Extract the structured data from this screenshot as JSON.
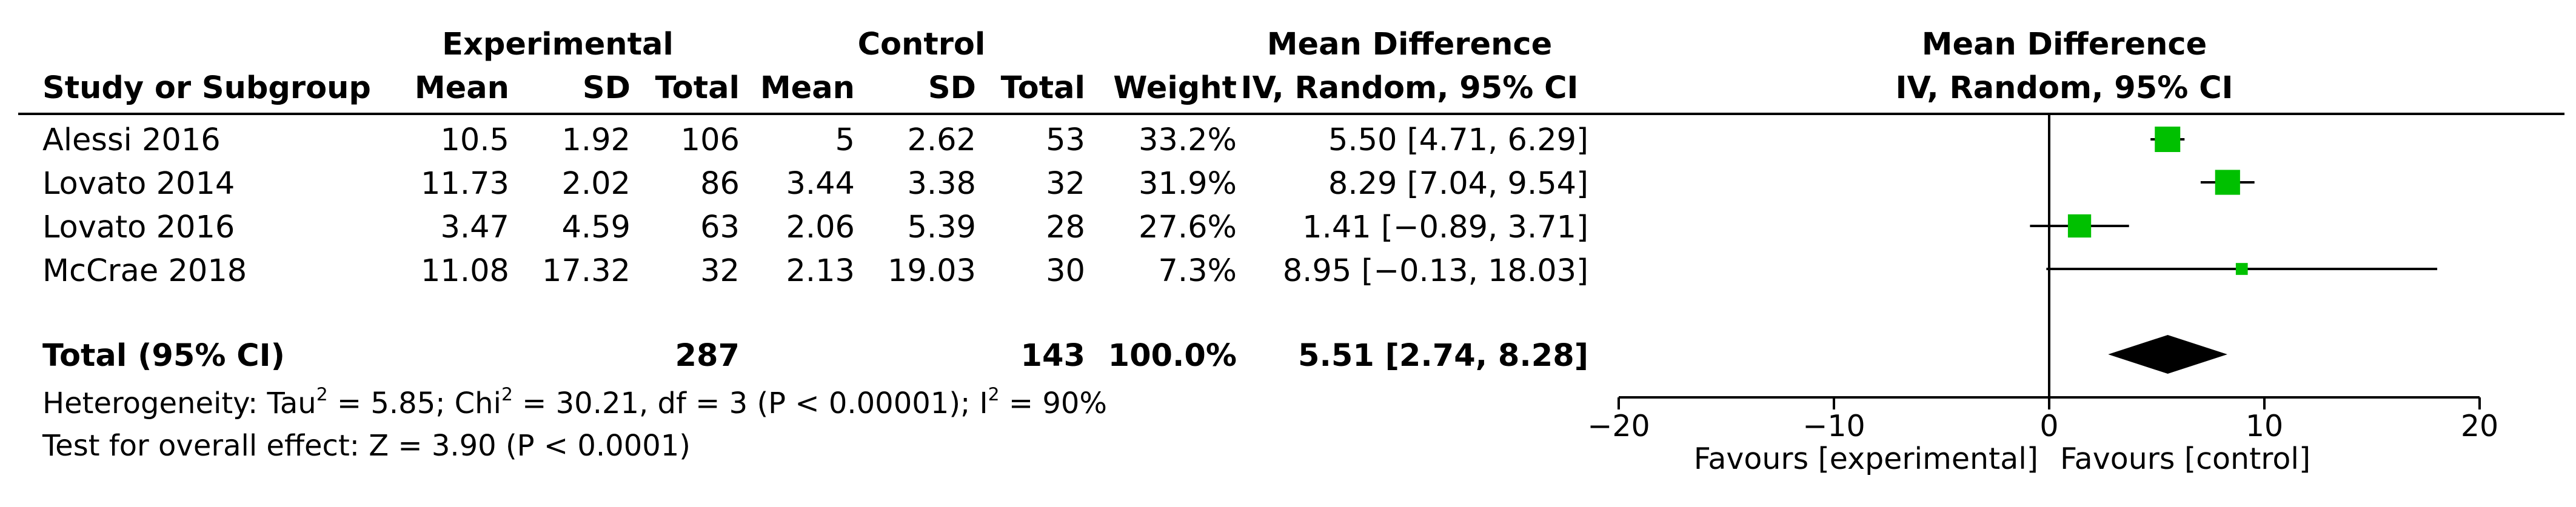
{
  "header": {
    "group_experimental": "Experimental",
    "group_control": "Control",
    "md_title": "Mean Difference",
    "study_col": "Study or Subgroup",
    "mean": "Mean",
    "sd": "SD",
    "total": "Total",
    "weight": "Weight",
    "md_method": "IV, Random, 95% CI",
    "plot_title": "Mean Difference",
    "plot_method": "IV, Random, 95% CI"
  },
  "studies": [
    {
      "name": "Alessi 2016",
      "exp_mean": "10.5",
      "exp_sd": "1.92",
      "exp_total": "106",
      "ctl_mean": "5",
      "ctl_sd": "2.62",
      "ctl_total": "53",
      "weight": "33.2%",
      "ci_text": "5.50 [4.71, 6.29]"
    },
    {
      "name": "Lovato 2014",
      "exp_mean": "11.73",
      "exp_sd": "2.02",
      "exp_total": "86",
      "ctl_mean": "3.44",
      "ctl_sd": "3.38",
      "ctl_total": "32",
      "weight": "31.9%",
      "ci_text": "8.29 [7.04, 9.54]"
    },
    {
      "name": "Lovato 2016",
      "exp_mean": "3.47",
      "exp_sd": "4.59",
      "exp_total": "63",
      "ctl_mean": "2.06",
      "ctl_sd": "5.39",
      "ctl_total": "28",
      "weight": "27.6%",
      "ci_text": "1.41 [−0.89, 3.71]"
    },
    {
      "name": "McCrae 2018",
      "exp_mean": "11.08",
      "exp_sd": "17.32",
      "exp_total": "32",
      "ctl_mean": "2.13",
      "ctl_sd": "19.03",
      "ctl_total": "30",
      "weight": "7.3%",
      "ci_text": "8.95 [−0.13, 18.03]"
    }
  ],
  "total_row": {
    "label": "Total (95% CI)",
    "exp_total": "287",
    "ctl_total": "143",
    "weight": "100.0%",
    "ci_text": "5.51 [2.74, 8.28]"
  },
  "footer": {
    "het_pre": "Heterogeneity: Tau",
    "het_mid1": " = 5.85; Chi",
    "het_mid2": " = 30.21, df = 3 (P < 0.00001); I",
    "het_post": " = 90%",
    "sup": "2",
    "overall": "Test for overall effect: Z = 3.90 (P < 0.0001)"
  },
  "axis": {
    "favours_left": "Favours [experimental]",
    "favours_right": "Favours [control]"
  },
  "colors": {
    "study_marker": "#00c000",
    "line": "#000000"
  },
  "chart_data": {
    "type": "forest",
    "title": "Mean Difference",
    "subtitle": "IV, Random, 95% CI",
    "xlim": [
      -20,
      20
    ],
    "xticks": [
      -20,
      -10,
      0,
      10,
      20
    ],
    "xtick_labels": [
      "−20",
      "−10",
      "0",
      "10",
      "20"
    ],
    "xlabel_left": "Favours [experimental]",
    "xlabel_right": "Favours [control]",
    "null_line": 0,
    "studies": [
      {
        "name": "Alessi 2016",
        "estimate": 5.5,
        "lower": 4.71,
        "upper": 6.29,
        "weight": 33.2
      },
      {
        "name": "Lovato 2014",
        "estimate": 8.29,
        "lower": 7.04,
        "upper": 9.54,
        "weight": 31.9
      },
      {
        "name": "Lovato 2016",
        "estimate": 1.41,
        "lower": -0.89,
        "upper": 3.71,
        "weight": 27.6
      },
      {
        "name": "McCrae 2018",
        "estimate": 8.95,
        "lower": -0.13,
        "upper": 18.03,
        "weight": 7.3
      }
    ],
    "pooled": {
      "name": "Total (95% CI)",
      "estimate": 5.51,
      "lower": 2.74,
      "upper": 8.28
    }
  }
}
